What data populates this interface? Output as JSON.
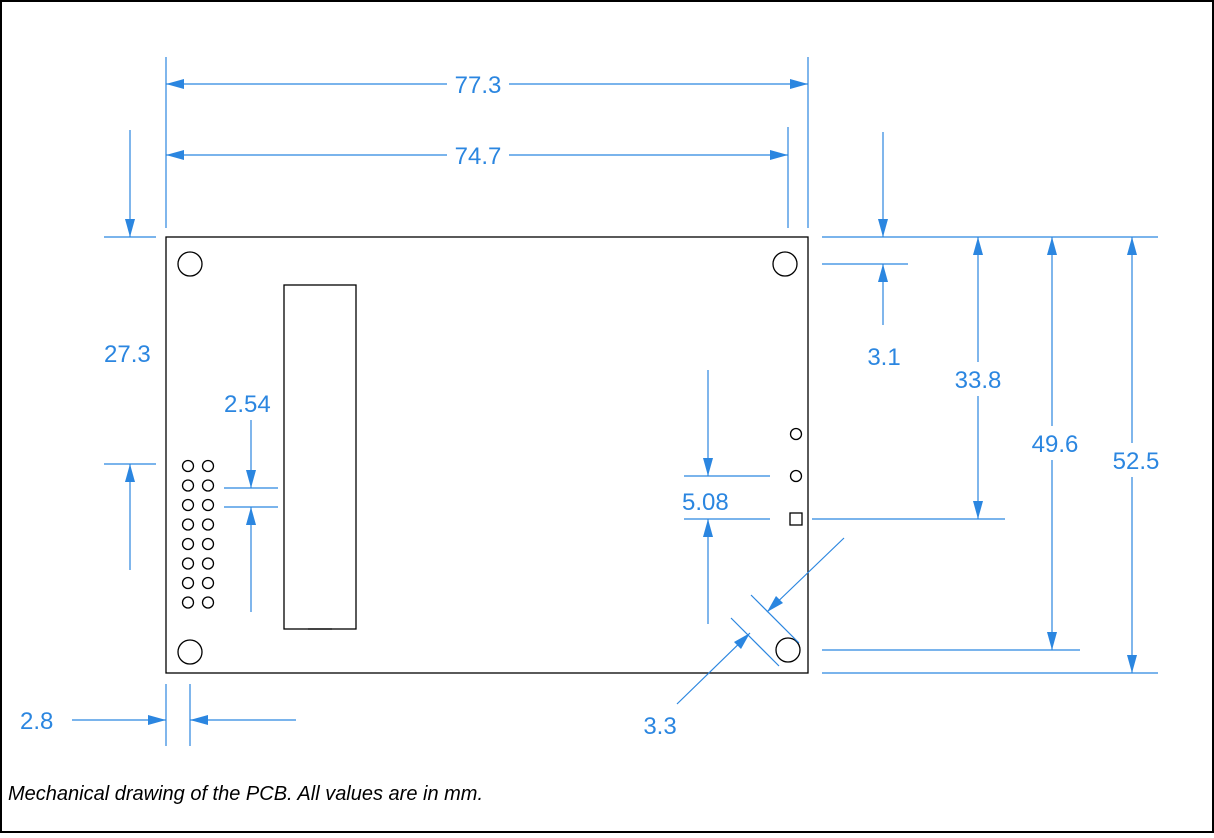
{
  "drawing": {
    "dimensions": {
      "overall_width": "77.3",
      "hole_spacing_width": "74.7",
      "header_offset": "27.3",
      "pin_pitch": "2.54",
      "hole_edge_offset_top": "3.1",
      "pad_offset": "33.8",
      "hole_spacing_height": "49.6",
      "overall_height": "52.5",
      "pad_spacing": "5.08",
      "hole_edge_offset_left": "2.8",
      "hole_diameter": "3.3"
    },
    "caption": "Mechanical drawing of the PCB. All values are in mm.",
    "colors": {
      "dimension": "#2b86e0",
      "outline": "#000000",
      "background": "#ffffff"
    }
  }
}
